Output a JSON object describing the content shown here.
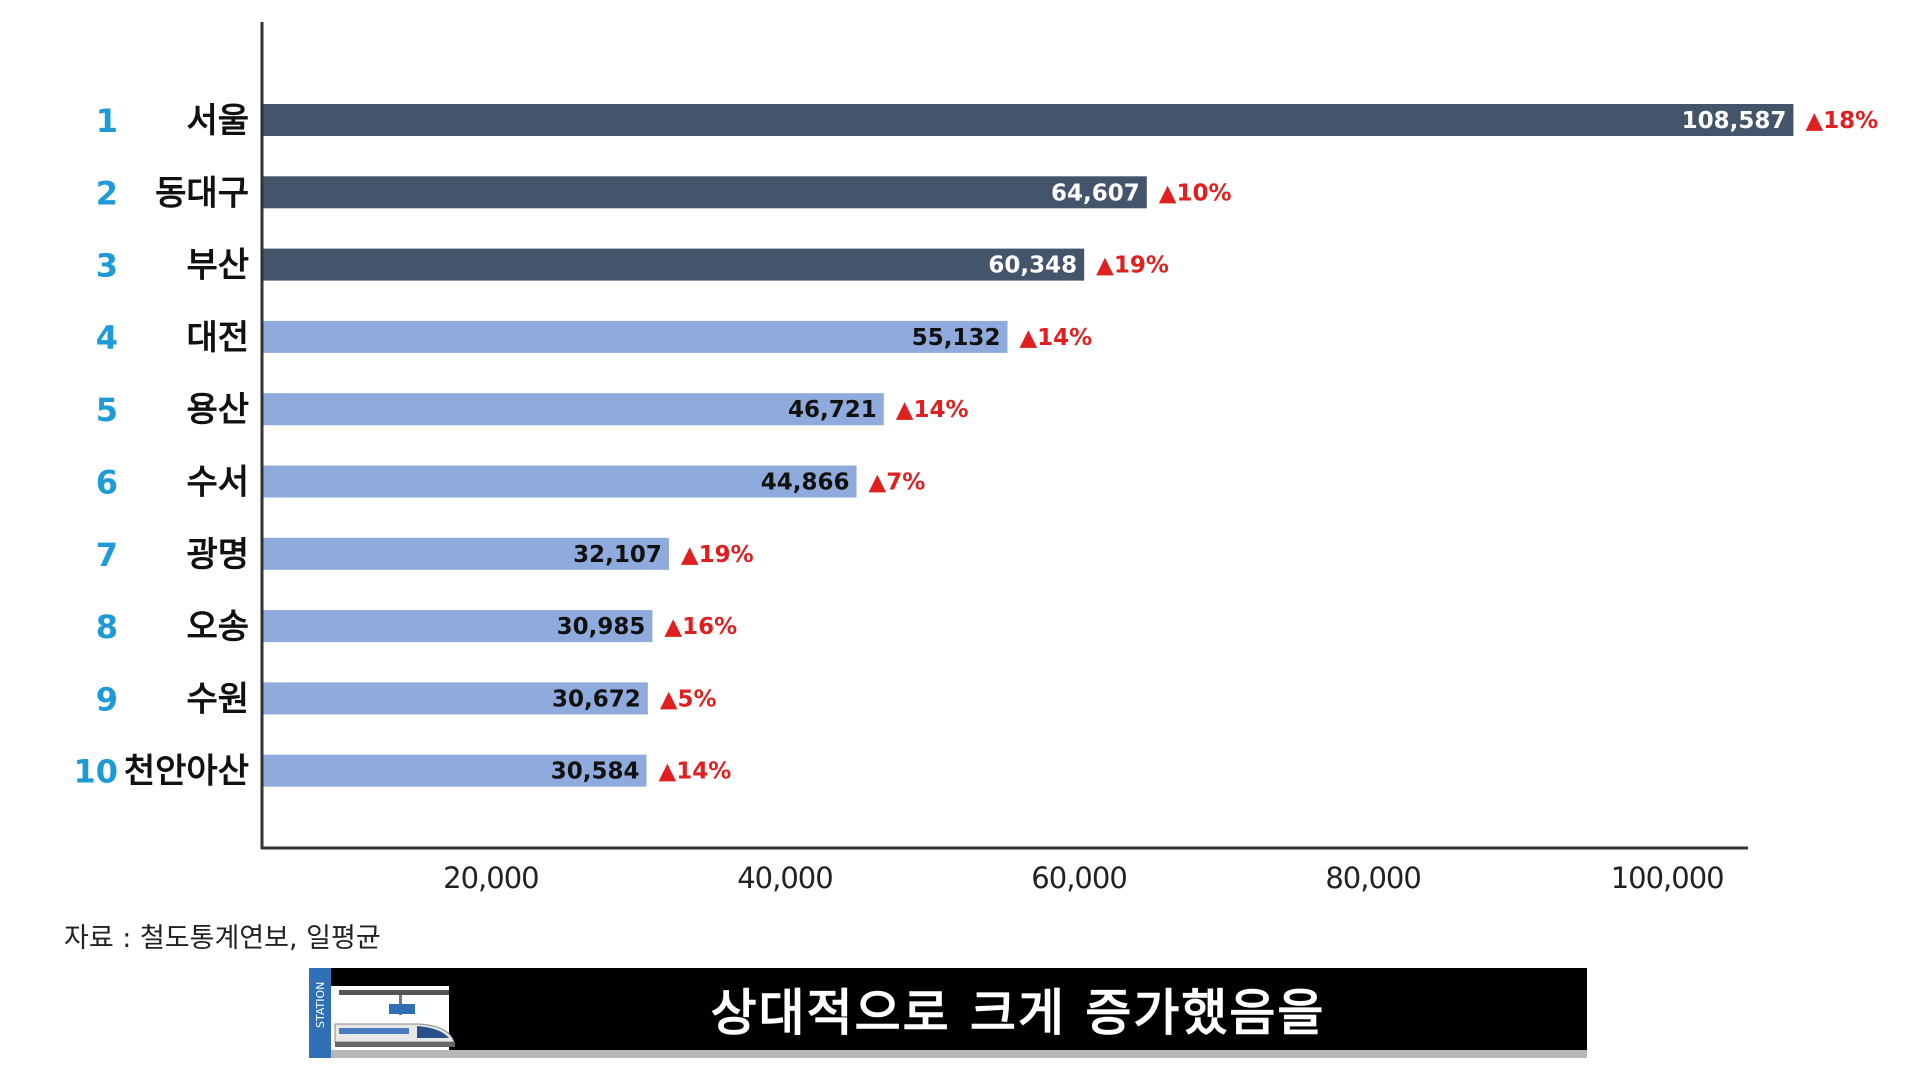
{
  "chart_data": {
    "type": "bar",
    "orientation": "horizontal",
    "ranks": [
      "1",
      "2",
      "3",
      "4",
      "5",
      "6",
      "7",
      "8",
      "9",
      "10"
    ],
    "categories": [
      "서울",
      "동대구",
      "부산",
      "대전",
      "용산",
      "수서",
      "광명",
      "오송",
      "수원",
      "천안아산"
    ],
    "values": [
      108587,
      64607,
      60348,
      55132,
      46721,
      44866,
      32107,
      30985,
      30672,
      30584
    ],
    "value_labels": [
      "108,587",
      "64,607",
      "60,348",
      "55,132",
      "46,721",
      "44,866",
      "32,107",
      "30,985",
      "30,672",
      "30,584"
    ],
    "changes": [
      "▲18%",
      "▲10%",
      "▲19%",
      "▲14%",
      "▲14%",
      "▲7%",
      "▲19%",
      "▲16%",
      "▲5%",
      "▲14%"
    ],
    "highlight_top": 3,
    "xlim": [
      4500,
      104000
    ],
    "xticks": [
      20000,
      40000,
      60000,
      80000,
      100000
    ],
    "xtick_labels": [
      "20,000",
      "40,000",
      "60,000",
      "80,000",
      "100,000"
    ],
    "colors": {
      "top": "#44546a",
      "rest": "#8faadc",
      "rank": "#1e9bd7",
      "change": "#e02020"
    },
    "source": "자료 : 철도통계연보, 일평균"
  },
  "banner": {
    "text": "상대적으로 크게 증가했음을",
    "station_label": "STATION"
  }
}
